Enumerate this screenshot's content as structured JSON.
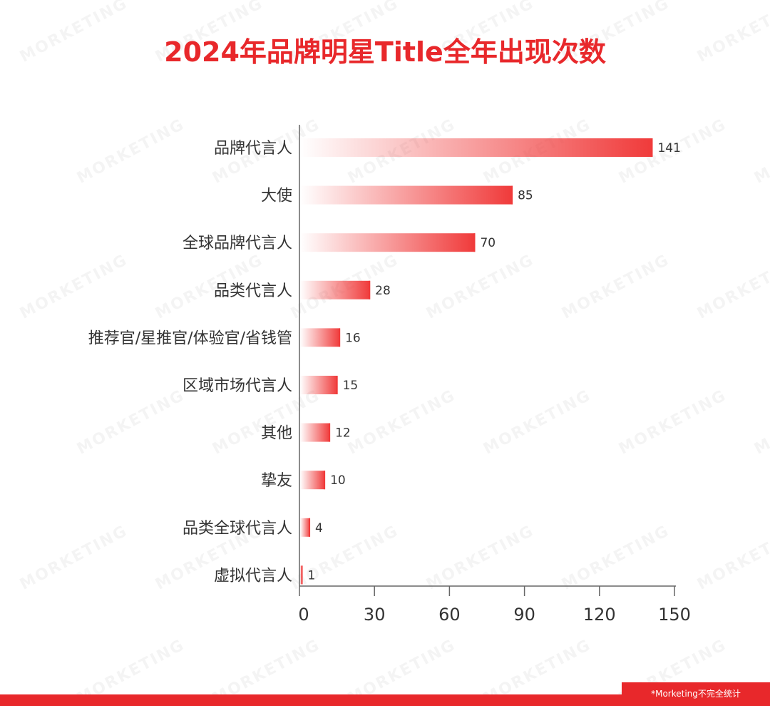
{
  "title": "2024年品牌明星Title全年出现次数",
  "footnote": "*Morketing不完全统计",
  "watermark_text": "MORKETING",
  "colors": {
    "accent": "#e8282b",
    "bar_end": "#f03a3a",
    "text": "#333333",
    "axis": "#666666"
  },
  "chart_data": {
    "type": "bar",
    "orientation": "horizontal",
    "title": "2024年品牌明星Title全年出现次数",
    "categories": [
      "品牌代言人",
      "大使",
      "全球品牌代言人",
      "品类代言人",
      "推荐官/星推官/体验官/省钱管",
      "区域市场代言人",
      "其他",
      "挚友",
      "品类全球代言人",
      "虚拟代言人"
    ],
    "values": [
      141,
      85,
      70,
      28,
      16,
      15,
      12,
      10,
      4,
      1
    ],
    "xlim": [
      0,
      150
    ],
    "xticks": [
      0,
      30,
      60,
      90,
      120,
      150
    ],
    "data_labels": true,
    "grid": false,
    "legend": "none"
  }
}
